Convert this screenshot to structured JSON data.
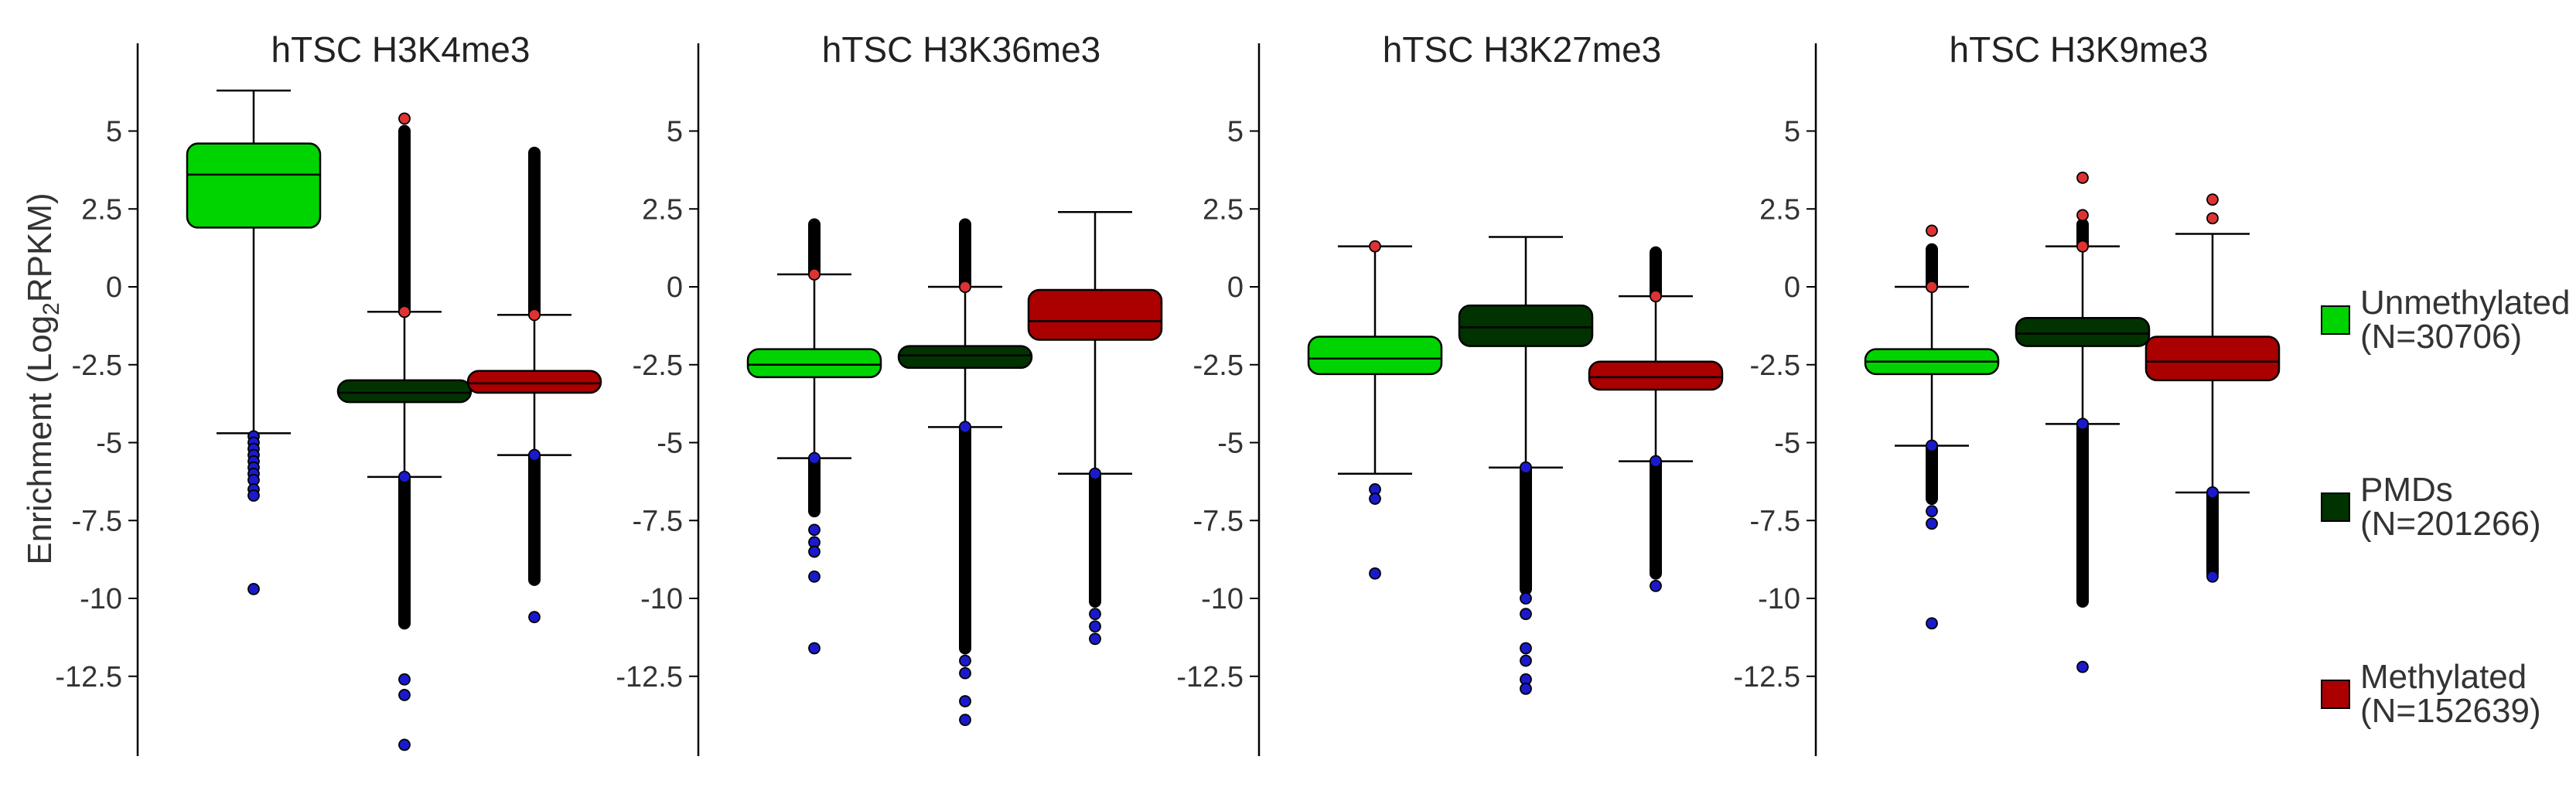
{
  "figure": {
    "ylabel_pre": "Enrichment (Log",
    "ylabel_sub": "2",
    "ylabel_post": "RPKM)"
  },
  "legend": [
    {
      "label": "Unmethylated",
      "count": "(N=30706)",
      "color": "#00d400"
    },
    {
      "label": "PMDs",
      "count": "(N=201266)",
      "color": "#003300"
    },
    {
      "label": "Methylated",
      "count": "(N=152639)",
      "color": "#aa0000"
    }
  ],
  "chart_data": [
    {
      "type": "box",
      "title": "hTSC H3K4me3",
      "ylim": [
        -15,
        6.5
      ],
      "yticks": [
        5,
        2.5,
        0,
        -2.5,
        -5,
        -7.5,
        -10,
        -12.5
      ],
      "ytick_labels": [
        "5",
        "2.5",
        "0",
        "-2.5",
        "-5",
        "-7.5",
        "-10",
        "-12.5"
      ],
      "boxes": [
        {
          "category": "Unmethylated",
          "whisker_low": -4.7,
          "q1": 1.9,
          "median": 3.6,
          "q3": 4.6,
          "whisker_high": 6.3,
          "outliers_low": [
            -4.8,
            -5.0,
            -5.2,
            -5.4,
            -5.6,
            -5.8,
            -6.0,
            -6.2,
            -6.5,
            -6.7,
            -9.7
          ],
          "outliers_high": []
        },
        {
          "category": "PMDs",
          "whisker_low": -6.1,
          "q1": -3.7,
          "median": -3.4,
          "q3": -3.0,
          "whisker_high": -0.8,
          "outliers_low_range": [
            -6.1,
            -10.8
          ],
          "outliers_low": [
            -12.6,
            -13.1,
            -14.7
          ],
          "outliers_high_range": [
            -0.8,
            5.0
          ],
          "outliers_high": [
            5.4
          ]
        },
        {
          "category": "Methylated",
          "whisker_low": -5.4,
          "q1": -3.4,
          "median": -3.1,
          "q3": -2.7,
          "whisker_high": -0.9,
          "outliers_low_range": [
            -5.4,
            -9.4
          ],
          "outliers_low": [
            -10.6
          ],
          "outliers_high_range": [
            -0.9,
            4.3
          ],
          "outliers_high": []
        }
      ]
    },
    {
      "type": "box",
      "title": "hTSC H3K36me3",
      "ylim": [
        -15,
        6.5
      ],
      "yticks": [
        5,
        2.5,
        0,
        -2.5,
        -5,
        -7.5,
        -10,
        -12.5
      ],
      "ytick_labels": [
        "5",
        "2.5",
        "0",
        "-2.5",
        "-5",
        "-7.5",
        "-10",
        "-12.5"
      ],
      "boxes": [
        {
          "category": "Unmethylated",
          "whisker_low": -5.5,
          "q1": -2.9,
          "median": -2.5,
          "q3": -2.0,
          "whisker_high": 0.4,
          "outliers_low_range": [
            -5.5,
            -7.2
          ],
          "outliers_low": [
            -7.8,
            -8.2,
            -8.5,
            -9.3,
            -11.6
          ],
          "outliers_high_range": [
            0.4,
            2.0
          ],
          "outliers_high": []
        },
        {
          "category": "PMDs",
          "whisker_low": -4.5,
          "q1": -2.6,
          "median": -2.2,
          "q3": -1.9,
          "whisker_high": 0.0,
          "outliers_low_range": [
            -4.5,
            -11.6
          ],
          "outliers_low": [
            -12.0,
            -12.4,
            -13.3,
            -13.9
          ],
          "outliers_high_range": [
            0.0,
            2.0
          ],
          "outliers_high": []
        },
        {
          "category": "Methylated",
          "whisker_low": -6.0,
          "q1": -1.7,
          "median": -1.1,
          "q3": -0.1,
          "whisker_high": 2.4,
          "outliers_low_range": [
            -6.0,
            -10.1
          ],
          "outliers_low": [
            -10.5,
            -10.9,
            -11.3
          ],
          "outliers_high_range": [],
          "outliers_high": []
        }
      ]
    },
    {
      "type": "box",
      "title": "hTSC H3K27me3",
      "ylim": [
        -15,
        6.5
      ],
      "yticks": [
        5,
        2.5,
        0,
        -2.5,
        -5,
        -7.5,
        -10,
        -12.5
      ],
      "ytick_labels": [
        "5",
        "2.5",
        "0",
        "-2.5",
        "-5",
        "-7.5",
        "-10",
        "-12.5"
      ],
      "boxes": [
        {
          "category": "Unmethylated",
          "whisker_low": -6.0,
          "q1": -2.8,
          "median": -2.3,
          "q3": -1.6,
          "whisker_high": 1.3,
          "outliers_low": [
            -6.5,
            -6.8,
            -9.2
          ],
          "outliers_high": [
            1.3
          ]
        },
        {
          "category": "PMDs",
          "whisker_low": -5.8,
          "q1": -1.9,
          "median": -1.3,
          "q3": -0.6,
          "whisker_high": 1.6,
          "outliers_low_range": [
            -5.8,
            -9.7
          ],
          "outliers_low": [
            -10.0,
            -10.5,
            -11.6,
            -12.0,
            -12.6,
            -12.9
          ],
          "outliers_high_range": [],
          "outliers_high": []
        },
        {
          "category": "Methylated",
          "whisker_low": -5.6,
          "q1": -3.3,
          "median": -2.9,
          "q3": -2.4,
          "whisker_high": -0.3,
          "outliers_low_range": [
            -5.6,
            -9.2
          ],
          "outliers_low": [
            -9.6
          ],
          "outliers_high_range": [
            -0.3,
            1.1
          ],
          "outliers_high": []
        }
      ]
    },
    {
      "type": "box",
      "title": "hTSC H3K9me3",
      "ylim": [
        -15,
        6.5
      ],
      "yticks": [
        5,
        2.5,
        0,
        -2.5,
        -5,
        -7.5,
        -10,
        -12.5
      ],
      "ytick_labels": [
        "5",
        "2.5",
        "0",
        "-2.5",
        "-5",
        "-7.5",
        "-10",
        "-12.5"
      ],
      "boxes": [
        {
          "category": "Unmethylated",
          "whisker_low": -5.1,
          "q1": -2.8,
          "median": -2.4,
          "q3": -2.0,
          "whisker_high": 0.0,
          "outliers_low_range": [
            -5.1,
            -6.8
          ],
          "outliers_low": [
            -7.2,
            -7.6,
            -10.8
          ],
          "outliers_high_range": [
            0.0,
            1.2
          ],
          "outliers_high": [
            1.8
          ]
        },
        {
          "category": "PMDs",
          "whisker_low": -4.4,
          "q1": -1.9,
          "median": -1.5,
          "q3": -1.0,
          "whisker_high": 1.3,
          "outliers_low_range": [
            -4.4,
            -10.1
          ],
          "outliers_low": [
            -12.2
          ],
          "outliers_high_range": [
            1.3,
            2.0
          ],
          "outliers_high": [
            2.3,
            3.5
          ]
        },
        {
          "category": "Methylated",
          "whisker_low": -6.6,
          "q1": -3.0,
          "median": -2.4,
          "q3": -1.6,
          "whisker_high": 1.7,
          "outliers_low_range": [
            -6.6,
            -9.2
          ],
          "outliers_low": [
            -9.3
          ],
          "outliers_high_range": [],
          "outliers_high": [
            2.2,
            2.8
          ]
        }
      ]
    }
  ]
}
